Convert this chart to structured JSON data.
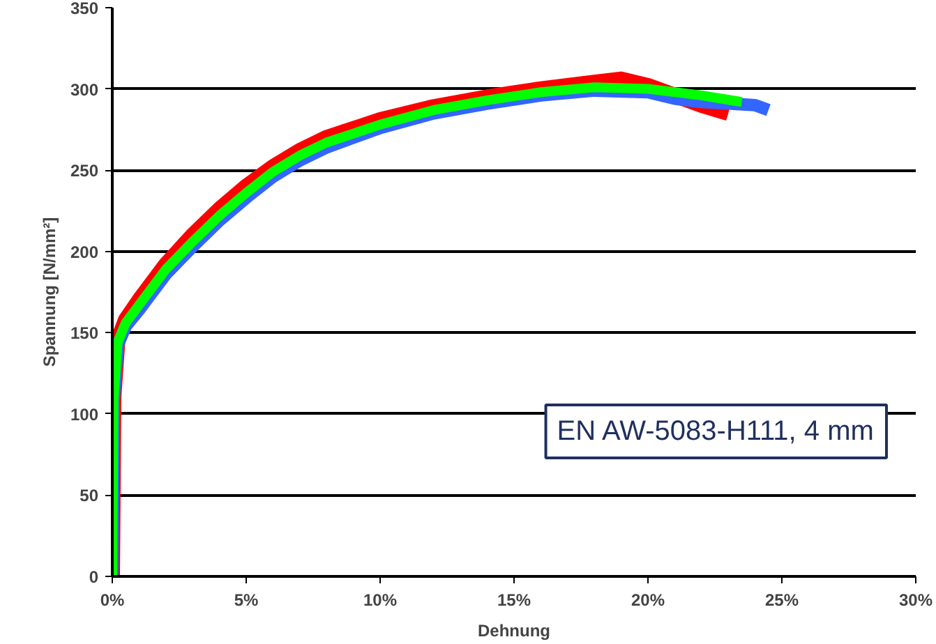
{
  "chart_data": {
    "type": "line",
    "xlabel": "Dehnung",
    "ylabel": "Spannung [N/mm²]",
    "xlim": [
      0,
      30
    ],
    "ylim": [
      0,
      350
    ],
    "xticks": [
      {
        "value": 0,
        "label": "0%"
      },
      {
        "value": 5,
        "label": "5%"
      },
      {
        "value": 10,
        "label": "10%"
      },
      {
        "value": 15,
        "label": "15%"
      },
      {
        "value": 20,
        "label": "20%"
      },
      {
        "value": 25,
        "label": "25%"
      },
      {
        "value": 30,
        "label": "30%"
      }
    ],
    "yticks": [
      0,
      50,
      100,
      150,
      200,
      250,
      300,
      350
    ],
    "grid": "y",
    "marker": "none",
    "line_style": "solid",
    "annotations": [
      "EN AW-5083-H111, 4 mm"
    ],
    "series": [
      {
        "color": "#ff0000",
        "x": [
          0,
          0.05,
          0.2,
          0.5,
          1,
          2,
          3,
          4,
          5,
          6,
          7,
          8,
          10,
          12,
          14,
          16,
          18,
          19,
          20,
          21,
          22,
          23
        ],
        "values": [
          0,
          110,
          145,
          158,
          170,
          192,
          210,
          226,
          240,
          252,
          262,
          270,
          281,
          289,
          295,
          300,
          304,
          306,
          302,
          296,
          290,
          285
        ]
      },
      {
        "color": "#3366ff",
        "x": [
          0,
          0.05,
          0.2,
          0.5,
          1,
          2,
          3,
          4,
          5,
          6,
          7,
          8,
          10,
          12,
          14,
          16,
          18,
          20,
          21,
          22,
          23,
          24,
          24.5
        ],
        "values": [
          0,
          108,
          142,
          154,
          164,
          186,
          203,
          219,
          233,
          246,
          256,
          264,
          276,
          285,
          291,
          296,
          299,
          298,
          294,
          292,
          291,
          290,
          287
        ]
      },
      {
        "color": "#00ff00",
        "x": [
          0,
          0.05,
          0.2,
          0.5,
          1,
          2,
          3,
          4,
          5,
          6,
          7,
          8,
          10,
          12,
          14,
          16,
          18,
          20,
          22,
          23.5
        ],
        "values": [
          0,
          109,
          144,
          156,
          167,
          189,
          206,
          222,
          236,
          249,
          259,
          267,
          278,
          287,
          293,
          298,
          301,
          300,
          296,
          292
        ]
      }
    ]
  }
}
